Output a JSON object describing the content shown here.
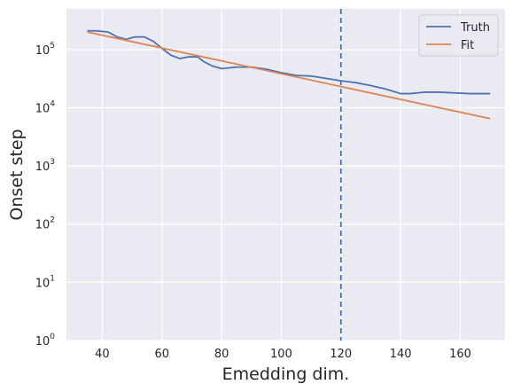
{
  "chart_data": {
    "type": "line",
    "title": "",
    "xlabel": "Emedding dim.",
    "ylabel": "Onset step",
    "xlim": [
      28,
      175
    ],
    "ylim": [
      1,
      500000
    ],
    "yscale": "log",
    "grid": true,
    "legend_placement": "top-right",
    "colors": {
      "background": "#eaeaf2",
      "grid": "#ffffff",
      "truth": "#4c72b0",
      "fit": "#dd8452",
      "vline": "#4c72b0"
    },
    "xticks": [
      {
        "value": 40,
        "label": "40"
      },
      {
        "value": 60,
        "label": "60"
      },
      {
        "value": 80,
        "label": "80"
      },
      {
        "value": 100,
        "label": "100"
      },
      {
        "value": 120,
        "label": "120"
      },
      {
        "value": 140,
        "label": "140"
      },
      {
        "value": 160,
        "label": "160"
      }
    ],
    "yticks": [
      {
        "value": 1,
        "base": "10",
        "exp": "0"
      },
      {
        "value": 10,
        "base": "10",
        "exp": "1"
      },
      {
        "value": 100,
        "base": "10",
        "exp": "2"
      },
      {
        "value": 1000,
        "base": "10",
        "exp": "3"
      },
      {
        "value": 10000,
        "base": "10",
        "exp": "4"
      },
      {
        "value": 100000,
        "base": "10",
        "exp": "5"
      }
    ],
    "vline": {
      "x": 120,
      "style": "dashed"
    },
    "series": [
      {
        "name": "Truth",
        "x": [
          35,
          38,
          42,
          45,
          48,
          51,
          54,
          57,
          60,
          63,
          66,
          69,
          72,
          74,
          77,
          80,
          85,
          90,
          95,
          100,
          105,
          110,
          115,
          120,
          125,
          130,
          135,
          140,
          143,
          148,
          153,
          158,
          163,
          166,
          170
        ],
        "y": [
          210000,
          210000,
          200000,
          165000,
          150000,
          165000,
          165000,
          140000,
          105000,
          80000,
          70000,
          75000,
          75000,
          62000,
          52000,
          47000,
          50000,
          50000,
          46000,
          40000,
          36000,
          35000,
          32000,
          29000,
          27000,
          24000,
          21000,
          17500,
          17500,
          18500,
          18500,
          18000,
          17500,
          17500,
          17500
        ]
      },
      {
        "name": "Fit",
        "x": [
          35,
          170
        ],
        "y": [
          200000,
          6500
        ]
      }
    ]
  }
}
